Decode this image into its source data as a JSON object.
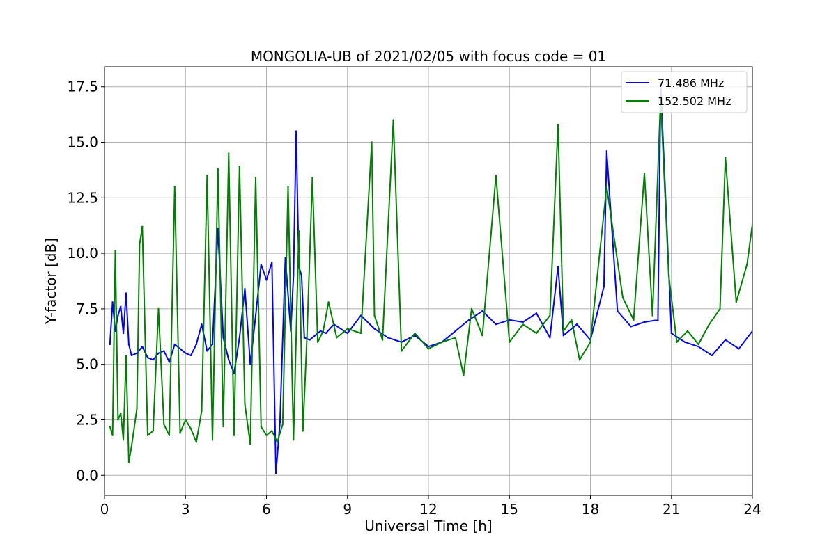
{
  "chart_data": {
    "type": "line",
    "title": "MONGOLIA-UB of 2021/02/05 with focus code = 01",
    "xlabel": "Universal Time [h]",
    "ylabel": "Y-factor [dB]",
    "xlim": [
      0,
      24
    ],
    "ylim": [
      -0.9,
      18.4
    ],
    "xticks": [
      0,
      3,
      6,
      9,
      12,
      15,
      18,
      21,
      24
    ],
    "xtick_labels": [
      "0",
      "3",
      "6",
      "9",
      "12",
      "15",
      "18",
      "21",
      "24"
    ],
    "yticks": [
      0.0,
      2.5,
      5.0,
      7.5,
      10.0,
      12.5,
      15.0,
      17.5
    ],
    "ytick_labels": [
      "0.0",
      "2.5",
      "5.0",
      "7.5",
      "10.0",
      "12.5",
      "15.0",
      "17.5"
    ],
    "grid": true,
    "legend_position": "top-right",
    "series": [
      {
        "name": "  71.486 MHz",
        "color": "#0000ff",
        "x": [
          0.2,
          0.3,
          0.4,
          0.5,
          0.6,
          0.7,
          0.8,
          0.9,
          1.0,
          1.2,
          1.4,
          1.6,
          1.8,
          2.0,
          2.2,
          2.4,
          2.6,
          2.8,
          3.0,
          3.2,
          3.4,
          3.6,
          3.8,
          4.0,
          4.2,
          4.4,
          4.6,
          4.8,
          5.0,
          5.2,
          5.4,
          5.6,
          5.8,
          6.0,
          6.2,
          6.35,
          6.5,
          6.7,
          6.9,
          7.0,
          7.1,
          7.2,
          7.3,
          7.4,
          7.6,
          7.8,
          8.0,
          8.2,
          8.5,
          9.0,
          9.5,
          10.0,
          10.5,
          11.0,
          11.5,
          12.0,
          12.5,
          13.0,
          13.5,
          14.0,
          14.5,
          15.0,
          15.5,
          16.0,
          16.5,
          16.8,
          17.0,
          17.5,
          18.0,
          18.5,
          18.6,
          19.0,
          19.5,
          20.0,
          20.5,
          20.6,
          21.0,
          21.5,
          22.0,
          22.5,
          23.0,
          23.5,
          24.0
        ],
        "y": [
          5.9,
          7.8,
          6.5,
          7.2,
          7.6,
          6.4,
          8.2,
          5.9,
          5.4,
          5.5,
          5.8,
          5.3,
          5.2,
          5.5,
          5.6,
          5.1,
          5.9,
          5.7,
          5.5,
          5.4,
          5.9,
          6.8,
          5.6,
          5.9,
          11.1,
          6.2,
          5.2,
          4.6,
          6.2,
          8.4,
          5.0,
          7.2,
          9.5,
          8.8,
          9.6,
          0.1,
          2.4,
          9.8,
          6.5,
          9.0,
          15.5,
          9.4,
          9.0,
          6.2,
          6.1,
          6.3,
          6.5,
          6.4,
          6.8,
          6.4,
          7.2,
          6.6,
          6.2,
          6.0,
          6.3,
          5.8,
          6.0,
          6.5,
          7.0,
          7.4,
          6.8,
          7.0,
          6.9,
          7.3,
          6.2,
          9.4,
          6.3,
          6.8,
          6.1,
          8.5,
          14.6,
          7.4,
          6.7,
          6.9,
          7.0,
          17.6,
          6.4,
          6.0,
          5.8,
          5.4,
          6.1,
          5.7,
          6.5
        ]
      },
      {
        "name": "152.502 MHz",
        "color": "#008000",
        "x": [
          0.2,
          0.3,
          0.4,
          0.5,
          0.6,
          0.7,
          0.8,
          0.9,
          1.0,
          1.2,
          1.3,
          1.4,
          1.6,
          1.8,
          2.0,
          2.2,
          2.4,
          2.6,
          2.8,
          3.0,
          3.2,
          3.4,
          3.6,
          3.8,
          4.0,
          4.2,
          4.4,
          4.6,
          4.8,
          5.0,
          5.2,
          5.4,
          5.6,
          5.8,
          6.0,
          6.2,
          6.4,
          6.6,
          6.8,
          7.0,
          7.2,
          7.35,
          7.5,
          7.7,
          7.9,
          8.1,
          8.3,
          8.6,
          9.0,
          9.5,
          9.9,
          10.0,
          10.3,
          10.7,
          11.0,
          11.5,
          12.0,
          12.5,
          13.0,
          13.3,
          13.6,
          14.0,
          14.5,
          15.0,
          15.5,
          16.0,
          16.5,
          16.8,
          17.0,
          17.3,
          17.6,
          18.0,
          18.3,
          18.6,
          18.9,
          19.2,
          19.6,
          20.0,
          20.3,
          20.6,
          20.9,
          21.2,
          21.6,
          22.0,
          22.4,
          22.8,
          23.0,
          23.4,
          23.8,
          24.0
        ],
        "y": [
          2.2,
          1.8,
          10.1,
          2.5,
          2.8,
          1.6,
          5.4,
          0.6,
          1.3,
          3.0,
          10.4,
          11.2,
          1.8,
          2.0,
          7.5,
          2.3,
          1.8,
          13.0,
          1.9,
          2.5,
          2.1,
          1.5,
          2.9,
          13.5,
          1.6,
          13.8,
          2.2,
          14.5,
          1.8,
          13.9,
          3.2,
          1.4,
          13.4,
          2.2,
          1.8,
          2.0,
          1.5,
          2.3,
          13.0,
          1.6,
          11.0,
          2.0,
          6.2,
          13.4,
          6.0,
          6.5,
          7.8,
          6.2,
          6.6,
          6.4,
          15.0,
          7.2,
          6.1,
          16.0,
          5.6,
          6.4,
          5.7,
          6.0,
          6.2,
          4.5,
          7.5,
          6.3,
          13.5,
          6.0,
          6.8,
          6.4,
          7.2,
          15.8,
          6.5,
          7.0,
          5.2,
          6.0,
          9.5,
          13.0,
          10.5,
          8.0,
          7.0,
          13.6,
          7.2,
          17.0,
          9.0,
          6.0,
          6.5,
          5.9,
          6.8,
          7.5,
          14.3,
          7.8,
          9.5,
          11.3
        ]
      }
    ]
  }
}
